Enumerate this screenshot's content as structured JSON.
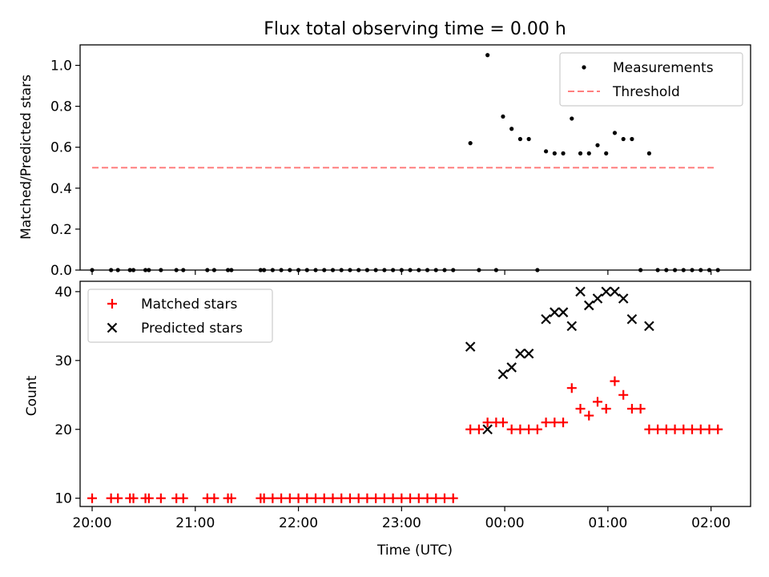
{
  "chart_data": [
    {
      "type": "scatter",
      "title": "Flux total observing time = 0.00 h",
      "ylabel": "Matched/Predicted stars",
      "xlabel": "",
      "ylim": [
        0,
        1.1
      ],
      "xlim": [
        "19:53",
        "02:23"
      ],
      "x_ticks": [
        "20:00",
        "21:00",
        "22:00",
        "23:00",
        "00:00",
        "01:00",
        "02:00"
      ],
      "y_ticks": [
        "0.0",
        "0.2",
        "0.4",
        "0.6",
        "0.8",
        "1.0"
      ],
      "legend": {
        "position": "top-right",
        "entries": [
          "Measurements",
          "Threshold"
        ]
      },
      "series": [
        {
          "name": "Measurements",
          "color": "#000000",
          "marker": "dot",
          "points": [
            [
              "20:00",
              0
            ],
            [
              "20:11",
              0
            ],
            [
              "20:15",
              0
            ],
            [
              "20:22",
              0
            ],
            [
              "20:24",
              0
            ],
            [
              "20:31",
              0
            ],
            [
              "20:33",
              0
            ],
            [
              "20:40",
              0
            ],
            [
              "20:49",
              0
            ],
            [
              "20:53",
              0
            ],
            [
              "21:07",
              0
            ],
            [
              "21:11",
              0
            ],
            [
              "21:19",
              0
            ],
            [
              "21:21",
              0
            ],
            [
              "21:38",
              0
            ],
            [
              "21:40",
              0
            ],
            [
              "21:45",
              0
            ],
            [
              "21:50",
              0
            ],
            [
              "21:55",
              0
            ],
            [
              "22:00",
              0
            ],
            [
              "22:05",
              0
            ],
            [
              "22:10",
              0
            ],
            [
              "22:15",
              0
            ],
            [
              "22:20",
              0
            ],
            [
              "22:25",
              0
            ],
            [
              "22:30",
              0
            ],
            [
              "22:35",
              0
            ],
            [
              "22:40",
              0
            ],
            [
              "22:45",
              0
            ],
            [
              "22:50",
              0
            ],
            [
              "22:55",
              0
            ],
            [
              "23:00",
              0
            ],
            [
              "23:05",
              0
            ],
            [
              "23:10",
              0
            ],
            [
              "23:15",
              0
            ],
            [
              "23:20",
              0
            ],
            [
              "23:25",
              0
            ],
            [
              "23:30",
              0
            ],
            [
              "23:40",
              0.62
            ],
            [
              "23:45",
              0
            ],
            [
              "23:50",
              1.05
            ],
            [
              "23:55",
              0
            ],
            [
              "23:59",
              0.75
            ],
            [
              "00:04",
              0.69
            ],
            [
              "00:09",
              0.64
            ],
            [
              "00:14",
              0.64
            ],
            [
              "00:19",
              0
            ],
            [
              "00:24",
              0.58
            ],
            [
              "00:29",
              0.57
            ],
            [
              "00:34",
              0.57
            ],
            [
              "00:39",
              0.74
            ],
            [
              "00:44",
              0.57
            ],
            [
              "00:49",
              0.57
            ],
            [
              "00:54",
              0.61
            ],
            [
              "00:59",
              0.57
            ],
            [
              "01:04",
              0.67
            ],
            [
              "01:09",
              0.64
            ],
            [
              "01:14",
              0.64
            ],
            [
              "01:19",
              0
            ],
            [
              "01:24",
              0.57
            ],
            [
              "01:29",
              0
            ],
            [
              "01:34",
              0
            ],
            [
              "01:39",
              0
            ],
            [
              "01:44",
              0
            ],
            [
              "01:49",
              0
            ],
            [
              "01:54",
              0
            ],
            [
              "01:59",
              0
            ],
            [
              "02:04",
              0
            ]
          ]
        },
        {
          "name": "Threshold",
          "color": "#ff7f7f",
          "style": "dashed",
          "points": [
            [
              "20:00",
              0.5
            ],
            [
              "02:02",
              0.5
            ]
          ]
        }
      ]
    },
    {
      "type": "scatter",
      "title": "",
      "ylabel": "Count",
      "xlabel": "Time (UTC)",
      "ylim": [
        8.8,
        41.5
      ],
      "xlim": [
        "19:53",
        "02:23"
      ],
      "x_ticks": [
        "20:00",
        "21:00",
        "22:00",
        "23:00",
        "00:00",
        "01:00",
        "02:00"
      ],
      "y_ticks": [
        "10",
        "20",
        "30",
        "40"
      ],
      "legend": {
        "position": "top-left",
        "entries": [
          "Matched stars",
          "Predicted stars"
        ]
      },
      "series": [
        {
          "name": "Matched stars",
          "color": "#ff0000",
          "marker": "plus",
          "points": [
            [
              "20:00",
              10
            ],
            [
              "20:11",
              10
            ],
            [
              "20:15",
              10
            ],
            [
              "20:22",
              10
            ],
            [
              "20:24",
              10
            ],
            [
              "20:31",
              10
            ],
            [
              "20:33",
              10
            ],
            [
              "20:40",
              10
            ],
            [
              "20:49",
              10
            ],
            [
              "20:53",
              10
            ],
            [
              "21:07",
              10
            ],
            [
              "21:11",
              10
            ],
            [
              "21:19",
              10
            ],
            [
              "21:21",
              10
            ],
            [
              "21:38",
              10
            ],
            [
              "21:40",
              10
            ],
            [
              "21:45",
              10
            ],
            [
              "21:50",
              10
            ],
            [
              "21:55",
              10
            ],
            [
              "22:00",
              10
            ],
            [
              "22:05",
              10
            ],
            [
              "22:10",
              10
            ],
            [
              "22:15",
              10
            ],
            [
              "22:20",
              10
            ],
            [
              "22:25",
              10
            ],
            [
              "22:30",
              10
            ],
            [
              "22:35",
              10
            ],
            [
              "22:40",
              10
            ],
            [
              "22:45",
              10
            ],
            [
              "22:50",
              10
            ],
            [
              "22:55",
              10
            ],
            [
              "23:00",
              10
            ],
            [
              "23:05",
              10
            ],
            [
              "23:10",
              10
            ],
            [
              "23:15",
              10
            ],
            [
              "23:20",
              10
            ],
            [
              "23:25",
              10
            ],
            [
              "23:30",
              10
            ],
            [
              "23:40",
              20
            ],
            [
              "23:45",
              20
            ],
            [
              "23:50",
              21
            ],
            [
              "23:55",
              21
            ],
            [
              "23:59",
              21
            ],
            [
              "00:04",
              20
            ],
            [
              "00:09",
              20
            ],
            [
              "00:14",
              20
            ],
            [
              "00:19",
              20
            ],
            [
              "00:24",
              21
            ],
            [
              "00:29",
              21
            ],
            [
              "00:34",
              21
            ],
            [
              "00:39",
              26
            ],
            [
              "00:44",
              23
            ],
            [
              "00:49",
              22
            ],
            [
              "00:54",
              24
            ],
            [
              "00:59",
              23
            ],
            [
              "01:04",
              27
            ],
            [
              "01:09",
              25
            ],
            [
              "01:14",
              23
            ],
            [
              "01:19",
              23
            ],
            [
              "01:24",
              20
            ],
            [
              "01:29",
              20
            ],
            [
              "01:34",
              20
            ],
            [
              "01:39",
              20
            ],
            [
              "01:44",
              20
            ],
            [
              "01:49",
              20
            ],
            [
              "01:54",
              20
            ],
            [
              "01:59",
              20
            ],
            [
              "02:04",
              20
            ]
          ]
        },
        {
          "name": "Predicted stars",
          "color": "#000000",
          "marker": "x",
          "points": [
            [
              "23:40",
              32
            ],
            [
              "23:50",
              20
            ],
            [
              "23:59",
              28
            ],
            [
              "00:04",
              29
            ],
            [
              "00:09",
              31
            ],
            [
              "00:14",
              31
            ],
            [
              "00:24",
              36
            ],
            [
              "00:29",
              37
            ],
            [
              "00:34",
              37
            ],
            [
              "00:39",
              35
            ],
            [
              "00:44",
              40
            ],
            [
              "00:49",
              38
            ],
            [
              "00:54",
              39
            ],
            [
              "00:59",
              40
            ],
            [
              "01:04",
              40
            ],
            [
              "01:09",
              39
            ],
            [
              "01:14",
              36
            ],
            [
              "01:24",
              35
            ]
          ]
        }
      ]
    }
  ]
}
